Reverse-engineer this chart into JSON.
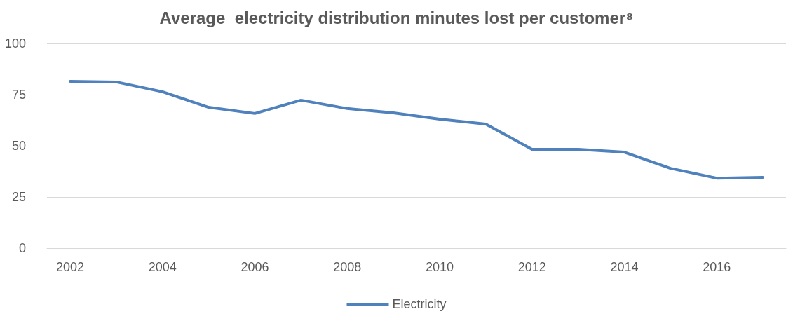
{
  "chart_data": {
    "type": "line",
    "title": "Average  electricity distribution minutes lost per customer⁸",
    "categories": [
      "2002",
      null,
      "2004",
      null,
      "2006",
      null,
      "2008",
      null,
      "2010",
      null,
      "2012",
      null,
      "2014",
      null,
      "2016",
      null
    ],
    "series": [
      {
        "name": "Electricity",
        "color": "#4f81bd",
        "values": [
          81.5,
          81.2,
          76.4,
          68.8,
          65.8,
          72.3,
          68.2,
          66.1,
          63,
          60.6,
          48.3,
          48.3,
          46.9,
          39,
          34.2,
          34.6
        ]
      }
    ],
    "ylim": [
      0,
      100
    ],
    "yticks": [
      0,
      25,
      50,
      75,
      100
    ],
    "grid": "y",
    "legend": "bottom",
    "marker": "none",
    "line_style": "solid"
  }
}
